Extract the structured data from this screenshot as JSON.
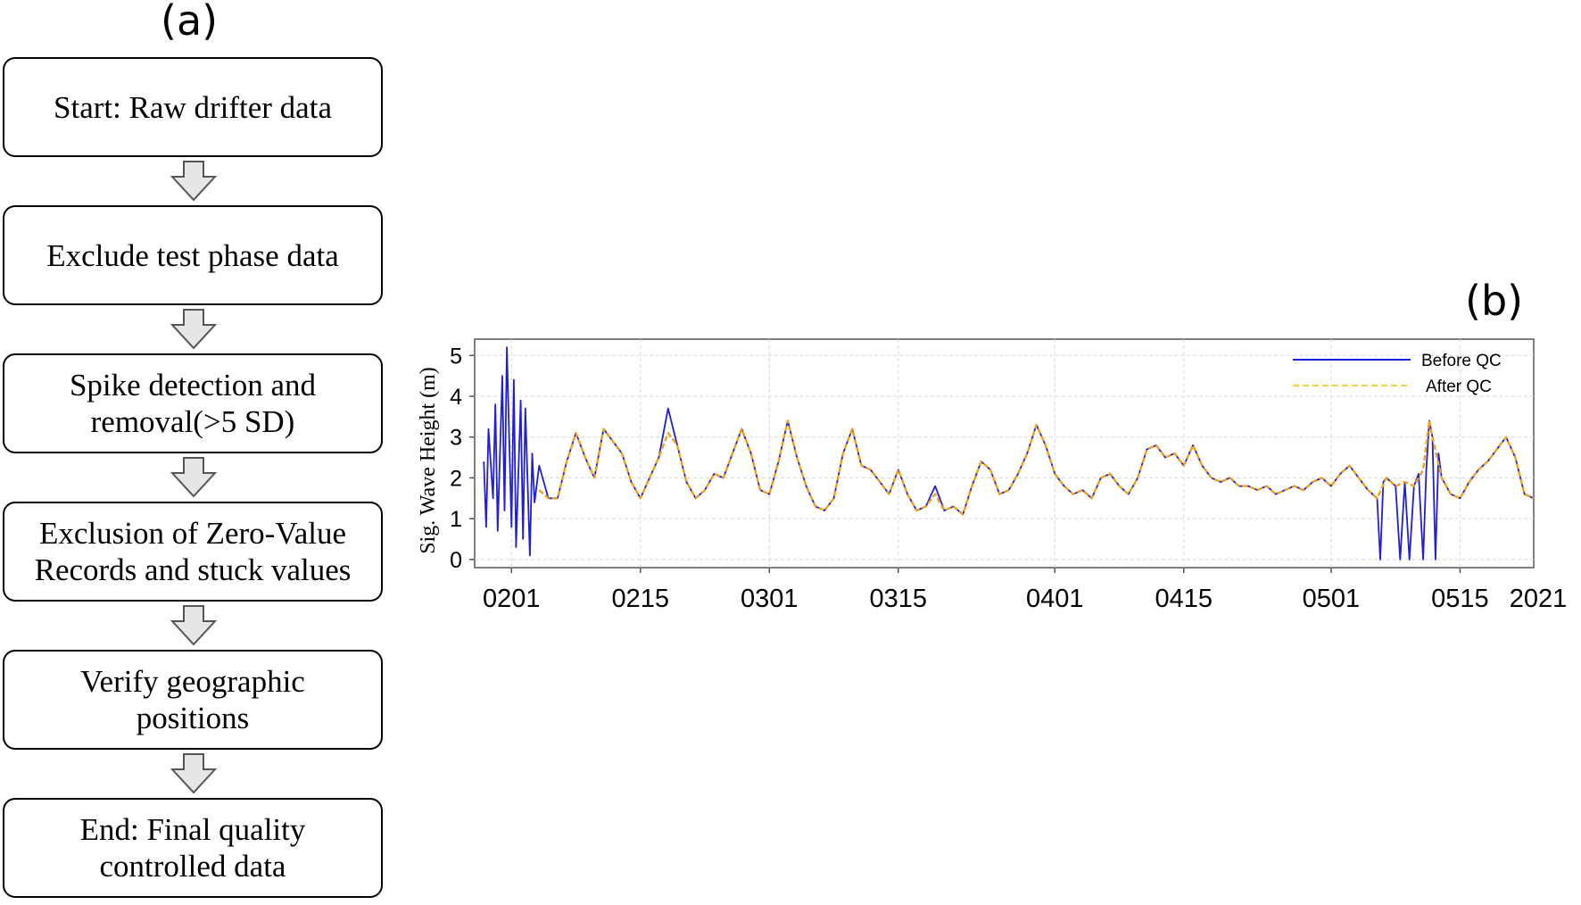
{
  "panel_a": {
    "label": "(a)",
    "steps": [
      "Start: Raw drifter data",
      "Exclude test phase data",
      "Spike detection and\nremoval(>5 SD)",
      "Exclusion of Zero-Value\nRecords and stuck values",
      "Verify geographic\npositions",
      "End: Final quality\ncontrolled data"
    ]
  },
  "panel_b": {
    "label": "(b)"
  },
  "chart_data": {
    "type": "line",
    "title": "",
    "xlabel": "",
    "ylabel": "Sig. Wave Height (m)",
    "x_tick_labels": [
      "0201",
      "0215",
      "0301",
      "0315",
      "0401",
      "0415",
      "0501",
      "0515"
    ],
    "x_tick_dates": [
      "2021-02-01",
      "2021-02-15",
      "2021-03-01",
      "2021-03-15",
      "2021-04-01",
      "2021-04-15",
      "2021-05-01",
      "2021-05-15"
    ],
    "x_axis_suffix": "2021",
    "xlim": [
      "2021-01-28",
      "2021-05-23"
    ],
    "y_ticks": [
      0,
      1,
      2,
      3,
      4,
      5
    ],
    "ylim": [
      -0.2,
      5.4
    ],
    "grid": true,
    "legend_position": "top-right",
    "series": [
      {
        "name": "Before QC",
        "color": "#1f1fd6",
        "style": "solid",
        "points": [
          [
            "2021-01-29",
            2.4
          ],
          [
            "2021-01-29T06",
            0.8
          ],
          [
            "2021-01-29T12",
            3.2
          ],
          [
            "2021-01-30",
            1.5
          ],
          [
            "2021-01-30T06",
            3.8
          ],
          [
            "2021-01-30T12",
            0.7
          ],
          [
            "2021-01-31",
            4.5
          ],
          [
            "2021-01-31T06",
            1.2
          ],
          [
            "2021-01-31T12",
            5.2
          ],
          [
            "2021-02-01",
            0.8
          ],
          [
            "2021-02-01T06",
            4.4
          ],
          [
            "2021-02-01T12",
            0.3
          ],
          [
            "2021-02-02",
            3.9
          ],
          [
            "2021-02-02T06",
            0.5
          ],
          [
            "2021-02-02T12",
            3.7
          ],
          [
            "2021-02-03",
            0.1
          ],
          [
            "2021-02-03T06",
            2.6
          ],
          [
            "2021-02-03T12",
            1.4
          ],
          [
            "2021-02-04",
            2.3
          ],
          [
            "2021-02-05",
            1.5
          ],
          [
            "2021-02-06",
            1.5
          ],
          [
            "2021-02-07",
            2.4
          ],
          [
            "2021-02-08",
            3.1
          ],
          [
            "2021-02-09",
            2.5
          ],
          [
            "2021-02-10",
            2.0
          ],
          [
            "2021-02-11",
            3.2
          ],
          [
            "2021-02-12",
            2.9
          ],
          [
            "2021-02-13",
            2.6
          ],
          [
            "2021-02-14",
            1.9
          ],
          [
            "2021-02-15",
            1.5
          ],
          [
            "2021-02-16",
            2.0
          ],
          [
            "2021-02-17",
            2.5
          ],
          [
            "2021-02-18",
            3.7
          ],
          [
            "2021-02-19",
            2.8
          ],
          [
            "2021-02-20",
            1.9
          ],
          [
            "2021-02-21",
            1.5
          ],
          [
            "2021-02-22",
            1.7
          ],
          [
            "2021-02-23",
            2.1
          ],
          [
            "2021-02-24",
            2.0
          ],
          [
            "2021-02-25",
            2.6
          ],
          [
            "2021-02-26",
            3.2
          ],
          [
            "2021-02-27",
            2.6
          ],
          [
            "2021-02-28",
            1.7
          ],
          [
            "2021-03-01",
            1.6
          ],
          [
            "2021-03-02",
            2.4
          ],
          [
            "2021-03-03",
            3.4
          ],
          [
            "2021-03-04",
            2.5
          ],
          [
            "2021-03-05",
            1.8
          ],
          [
            "2021-03-06",
            1.3
          ],
          [
            "2021-03-07",
            1.2
          ],
          [
            "2021-03-08",
            1.5
          ],
          [
            "2021-03-09",
            2.6
          ],
          [
            "2021-03-10",
            3.2
          ],
          [
            "2021-03-11",
            2.3
          ],
          [
            "2021-03-12",
            2.2
          ],
          [
            "2021-03-13",
            1.9
          ],
          [
            "2021-03-14",
            1.6
          ],
          [
            "2021-03-15",
            2.2
          ],
          [
            "2021-03-16",
            1.6
          ],
          [
            "2021-03-17",
            1.2
          ],
          [
            "2021-03-18",
            1.3
          ],
          [
            "2021-03-19",
            1.8
          ],
          [
            "2021-03-20",
            1.2
          ],
          [
            "2021-03-21",
            1.3
          ],
          [
            "2021-03-22",
            1.1
          ],
          [
            "2021-03-23",
            1.8
          ],
          [
            "2021-03-24",
            2.4
          ],
          [
            "2021-03-25",
            2.2
          ],
          [
            "2021-03-26",
            1.6
          ],
          [
            "2021-03-27",
            1.7
          ],
          [
            "2021-03-28",
            2.1
          ],
          [
            "2021-03-29",
            2.6
          ],
          [
            "2021-03-30",
            3.3
          ],
          [
            "2021-03-31",
            2.8
          ],
          [
            "2021-04-01",
            2.1
          ],
          [
            "2021-04-02",
            1.8
          ],
          [
            "2021-04-03",
            1.6
          ],
          [
            "2021-04-04",
            1.7
          ],
          [
            "2021-04-05",
            1.5
          ],
          [
            "2021-04-06",
            2.0
          ],
          [
            "2021-04-07",
            2.1
          ],
          [
            "2021-04-08",
            1.8
          ],
          [
            "2021-04-09",
            1.6
          ],
          [
            "2021-04-10",
            2.0
          ],
          [
            "2021-04-11",
            2.7
          ],
          [
            "2021-04-12",
            2.8
          ],
          [
            "2021-04-13",
            2.5
          ],
          [
            "2021-04-14",
            2.6
          ],
          [
            "2021-04-15",
            2.3
          ],
          [
            "2021-04-16",
            2.8
          ],
          [
            "2021-04-17",
            2.3
          ],
          [
            "2021-04-18",
            2.0
          ],
          [
            "2021-04-19",
            1.9
          ],
          [
            "2021-04-20",
            2.0
          ],
          [
            "2021-04-21",
            1.8
          ],
          [
            "2021-04-22",
            1.8
          ],
          [
            "2021-04-23",
            1.7
          ],
          [
            "2021-04-24",
            1.8
          ],
          [
            "2021-04-25",
            1.6
          ],
          [
            "2021-04-26",
            1.7
          ],
          [
            "2021-04-27",
            1.8
          ],
          [
            "2021-04-28",
            1.7
          ],
          [
            "2021-04-29",
            1.9
          ],
          [
            "2021-04-30",
            2.0
          ],
          [
            "2021-05-01",
            1.8
          ],
          [
            "2021-05-02",
            2.1
          ],
          [
            "2021-05-03",
            2.3
          ],
          [
            "2021-05-04",
            2.0
          ],
          [
            "2021-05-05",
            1.7
          ],
          [
            "2021-05-06",
            1.5
          ],
          [
            "2021-05-06T08",
            0.0
          ],
          [
            "2021-05-06T16",
            1.9
          ],
          [
            "2021-05-07",
            2.0
          ],
          [
            "2021-05-08",
            1.8
          ],
          [
            "2021-05-08T12",
            0.0
          ],
          [
            "2021-05-09",
            1.9
          ],
          [
            "2021-05-09T12",
            0.0
          ],
          [
            "2021-05-10",
            1.8
          ],
          [
            "2021-05-10T12",
            2.1
          ],
          [
            "2021-05-11",
            0.0
          ],
          [
            "2021-05-11T08",
            2.2
          ],
          [
            "2021-05-11T16",
            3.4
          ],
          [
            "2021-05-12",
            3.0
          ],
          [
            "2021-05-12T08",
            0.0
          ],
          [
            "2021-05-12T16",
            2.6
          ],
          [
            "2021-05-13",
            2.0
          ],
          [
            "2021-05-14",
            1.6
          ],
          [
            "2021-05-15",
            1.5
          ],
          [
            "2021-05-16",
            1.9
          ],
          [
            "2021-05-17",
            2.2
          ],
          [
            "2021-05-18",
            2.4
          ],
          [
            "2021-05-19",
            2.7
          ],
          [
            "2021-05-20",
            3.0
          ],
          [
            "2021-05-21",
            2.5
          ],
          [
            "2021-05-22",
            1.6
          ],
          [
            "2021-05-23",
            1.5
          ]
        ]
      },
      {
        "name": "After QC",
        "color": "#f0a020",
        "style": "dashed",
        "points": [
          [
            "2021-02-04",
            1.7
          ],
          [
            "2021-02-05",
            1.5
          ],
          [
            "2021-02-06",
            1.5
          ],
          [
            "2021-02-07",
            2.4
          ],
          [
            "2021-02-08",
            3.1
          ],
          [
            "2021-02-09",
            2.5
          ],
          [
            "2021-02-10",
            2.0
          ],
          [
            "2021-02-11",
            3.2
          ],
          [
            "2021-02-12",
            2.9
          ],
          [
            "2021-02-13",
            2.6
          ],
          [
            "2021-02-14",
            1.9
          ],
          [
            "2021-02-15",
            1.5
          ],
          [
            "2021-02-16",
            2.0
          ],
          [
            "2021-02-17",
            2.5
          ],
          [
            "2021-02-18",
            3.1
          ],
          [
            "2021-02-19",
            2.8
          ],
          [
            "2021-02-20",
            1.9
          ],
          [
            "2021-02-21",
            1.5
          ],
          [
            "2021-02-22",
            1.7
          ],
          [
            "2021-02-23",
            2.1
          ],
          [
            "2021-02-24",
            2.0
          ],
          [
            "2021-02-25",
            2.6
          ],
          [
            "2021-02-26",
            3.2
          ],
          [
            "2021-02-27",
            2.6
          ],
          [
            "2021-02-28",
            1.7
          ],
          [
            "2021-03-01",
            1.6
          ],
          [
            "2021-03-02",
            2.4
          ],
          [
            "2021-03-03",
            3.4
          ],
          [
            "2021-03-04",
            2.5
          ],
          [
            "2021-03-05",
            1.8
          ],
          [
            "2021-03-06",
            1.3
          ],
          [
            "2021-03-07",
            1.2
          ],
          [
            "2021-03-08",
            1.5
          ],
          [
            "2021-03-09",
            2.6
          ],
          [
            "2021-03-10",
            3.2
          ],
          [
            "2021-03-11",
            2.3
          ],
          [
            "2021-03-12",
            2.2
          ],
          [
            "2021-03-13",
            1.9
          ],
          [
            "2021-03-14",
            1.6
          ],
          [
            "2021-03-15",
            2.2
          ],
          [
            "2021-03-16",
            1.6
          ],
          [
            "2021-03-17",
            1.2
          ],
          [
            "2021-03-18",
            1.3
          ],
          [
            "2021-03-19",
            1.6
          ],
          [
            "2021-03-20",
            1.2
          ],
          [
            "2021-03-21",
            1.3
          ],
          [
            "2021-03-22",
            1.1
          ],
          [
            "2021-03-23",
            1.8
          ],
          [
            "2021-03-24",
            2.4
          ],
          [
            "2021-03-25",
            2.2
          ],
          [
            "2021-03-26",
            1.6
          ],
          [
            "2021-03-27",
            1.7
          ],
          [
            "2021-03-28",
            2.1
          ],
          [
            "2021-03-29",
            2.6
          ],
          [
            "2021-03-30",
            3.3
          ],
          [
            "2021-03-31",
            2.8
          ],
          [
            "2021-04-01",
            2.1
          ],
          [
            "2021-04-02",
            1.8
          ],
          [
            "2021-04-03",
            1.6
          ],
          [
            "2021-04-04",
            1.7
          ],
          [
            "2021-04-05",
            1.5
          ],
          [
            "2021-04-06",
            2.0
          ],
          [
            "2021-04-07",
            2.1
          ],
          [
            "2021-04-08",
            1.8
          ],
          [
            "2021-04-09",
            1.6
          ],
          [
            "2021-04-10",
            2.0
          ],
          [
            "2021-04-11",
            2.7
          ],
          [
            "2021-04-12",
            2.8
          ],
          [
            "2021-04-13",
            2.5
          ],
          [
            "2021-04-14",
            2.6
          ],
          [
            "2021-04-15",
            2.3
          ],
          [
            "2021-04-16",
            2.8
          ],
          [
            "2021-04-17",
            2.3
          ],
          [
            "2021-04-18",
            2.0
          ],
          [
            "2021-04-19",
            1.9
          ],
          [
            "2021-04-20",
            2.0
          ],
          [
            "2021-04-21",
            1.8
          ],
          [
            "2021-04-22",
            1.8
          ],
          [
            "2021-04-23",
            1.7
          ],
          [
            "2021-04-24",
            1.8
          ],
          [
            "2021-04-25",
            1.6
          ],
          [
            "2021-04-26",
            1.7
          ],
          [
            "2021-04-27",
            1.8
          ],
          [
            "2021-04-28",
            1.7
          ],
          [
            "2021-04-29",
            1.9
          ],
          [
            "2021-04-30",
            2.0
          ],
          [
            "2021-05-01",
            1.8
          ],
          [
            "2021-05-02",
            2.1
          ],
          [
            "2021-05-03",
            2.3
          ],
          [
            "2021-05-04",
            2.0
          ],
          [
            "2021-05-05",
            1.7
          ],
          [
            "2021-05-06",
            1.5
          ],
          [
            "2021-05-07",
            2.0
          ],
          [
            "2021-05-08",
            1.8
          ],
          [
            "2021-05-09",
            1.9
          ],
          [
            "2021-05-10",
            1.8
          ],
          [
            "2021-05-11",
            2.2
          ],
          [
            "2021-05-11T16",
            3.4
          ],
          [
            "2021-05-12",
            3.0
          ],
          [
            "2021-05-13",
            2.0
          ],
          [
            "2021-05-14",
            1.6
          ],
          [
            "2021-05-15",
            1.5
          ],
          [
            "2021-05-16",
            1.9
          ],
          [
            "2021-05-17",
            2.2
          ],
          [
            "2021-05-18",
            2.4
          ],
          [
            "2021-05-19",
            2.7
          ],
          [
            "2021-05-20",
            3.0
          ],
          [
            "2021-05-21",
            2.5
          ],
          [
            "2021-05-22",
            1.6
          ],
          [
            "2021-05-23",
            1.5
          ]
        ]
      }
    ]
  }
}
